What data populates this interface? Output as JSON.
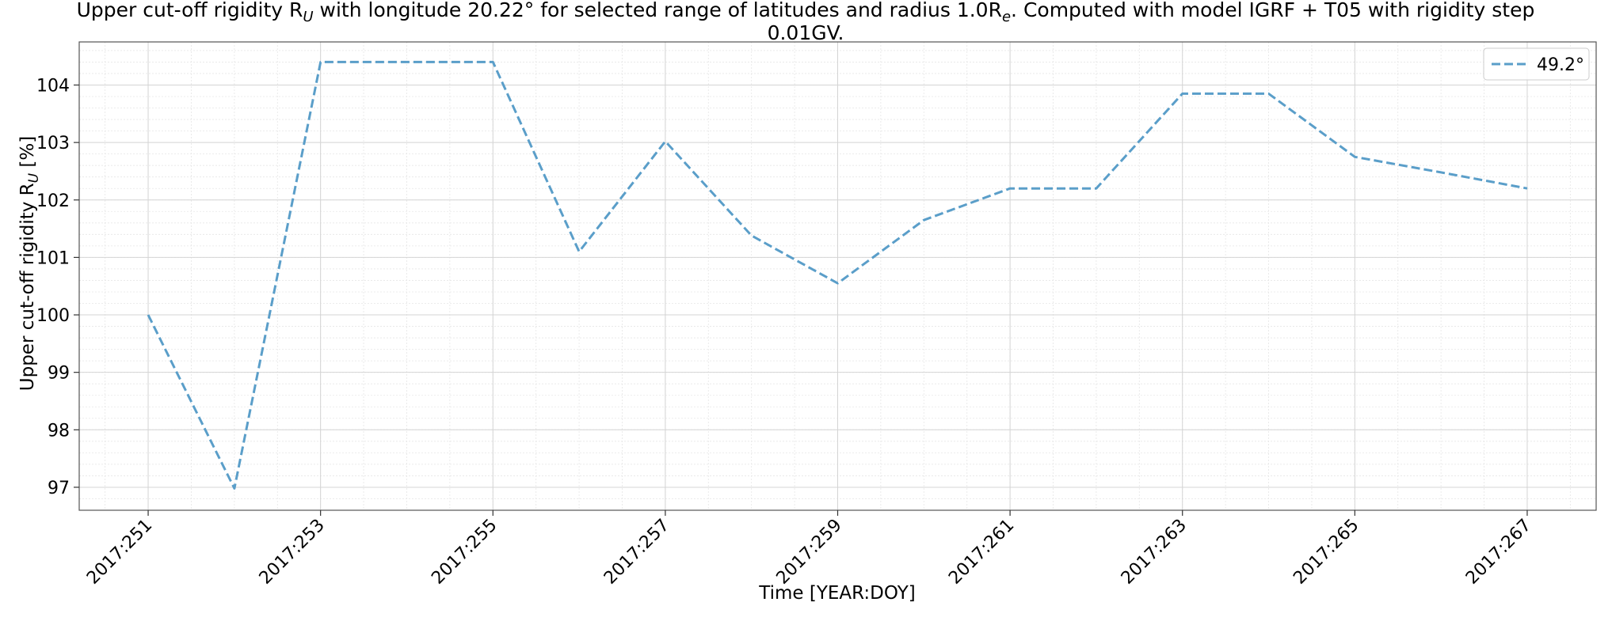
{
  "chart_data": {
    "type": "line",
    "title_line1": "Upper cut-off rigidity R",
    "title_line1_sub": "U",
    "title_line1_rest": " with longitude 20.22° for selected range of latitudes and radius 1.0R",
    "title_line1_sub2": "e",
    "title_line1_end": ". Computed with model IGRF + T05 with rigidity step",
    "title_line2": "0.01GV.",
    "xlabel": "Time [YEAR:DOY]",
    "ylabel_pre": "Upper cut-off rigidity R",
    "ylabel_sub": "U",
    "ylabel_post": " [%]",
    "xlim": [
      250.2,
      267.8
    ],
    "ylim": [
      96.6,
      104.75
    ],
    "x_ticks": [
      251,
      253,
      255,
      257,
      259,
      261,
      263,
      265,
      267
    ],
    "x_tick_labels": [
      "2017:251",
      "2017:253",
      "2017:255",
      "2017:257",
      "2017:259",
      "2017:261",
      "2017:263",
      "2017:265",
      "2017:267"
    ],
    "y_ticks": [
      97,
      98,
      99,
      100,
      101,
      102,
      103,
      104
    ],
    "y_tick_labels": [
      "97",
      "98",
      "99",
      "100",
      "101",
      "102",
      "103",
      "104"
    ],
    "grid": true,
    "legend_position": "top-right",
    "series": [
      {
        "name": "49.2°",
        "color": "#5a9ec9",
        "x": [
          251,
          252,
          253,
          254,
          255,
          256,
          257,
          258,
          259,
          260,
          261,
          262,
          263,
          264,
          265,
          266,
          267
        ],
        "y": [
          100.0,
          96.98,
          104.4,
          104.4,
          104.4,
          101.1,
          103.02,
          101.38,
          100.55,
          101.65,
          102.2,
          102.2,
          103.85,
          103.85,
          102.75,
          102.48,
          102.2
        ]
      }
    ]
  }
}
